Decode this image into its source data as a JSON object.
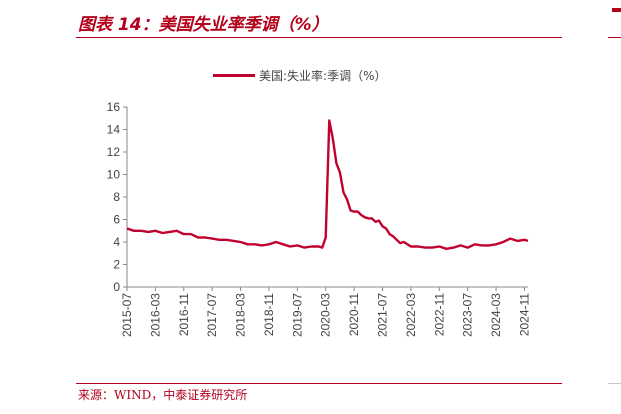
{
  "figure": {
    "title": "图表 14：美国失业率季调（%）",
    "source": "来源：WIND，中泰证券研究所"
  },
  "chart_data": {
    "type": "line",
    "legend_position": "top-center",
    "grid": false,
    "ylim": [
      0,
      16
    ],
    "y_ticks": [
      0,
      2,
      4,
      6,
      8,
      10,
      12,
      14,
      16
    ],
    "x_range": [
      "2015-07",
      "2024-12"
    ],
    "x_ticks": [
      "2015-07",
      "2016-03",
      "2016-11",
      "2017-07",
      "2018-03",
      "2018-11",
      "2019-07",
      "2020-03",
      "2020-11",
      "2021-07",
      "2022-03",
      "2022-11",
      "2023-07",
      "2024-03",
      "2024-11"
    ],
    "series": [
      {
        "name": "美国:失业率:季调（%）",
        "color": "#c0022f",
        "points": [
          [
            "2015-07",
            5.2
          ],
          [
            "2015-09",
            5.0
          ],
          [
            "2015-11",
            5.0
          ],
          [
            "2016-01",
            4.9
          ],
          [
            "2016-03",
            5.0
          ],
          [
            "2016-05",
            4.8
          ],
          [
            "2016-07",
            4.9
          ],
          [
            "2016-09",
            5.0
          ],
          [
            "2016-11",
            4.7
          ],
          [
            "2017-01",
            4.7
          ],
          [
            "2017-03",
            4.4
          ],
          [
            "2017-05",
            4.4
          ],
          [
            "2017-07",
            4.3
          ],
          [
            "2017-09",
            4.2
          ],
          [
            "2017-11",
            4.2
          ],
          [
            "2018-01",
            4.1
          ],
          [
            "2018-03",
            4.0
          ],
          [
            "2018-05",
            3.8
          ],
          [
            "2018-07",
            3.8
          ],
          [
            "2018-09",
            3.7
          ],
          [
            "2018-11",
            3.8
          ],
          [
            "2019-01",
            4.0
          ],
          [
            "2019-03",
            3.8
          ],
          [
            "2019-05",
            3.6
          ],
          [
            "2019-07",
            3.7
          ],
          [
            "2019-09",
            3.5
          ],
          [
            "2019-11",
            3.6
          ],
          [
            "2020-01",
            3.6
          ],
          [
            "2020-02",
            3.5
          ],
          [
            "2020-03",
            4.4
          ],
          [
            "2020-04",
            14.8
          ],
          [
            "2020-05",
            13.2
          ],
          [
            "2020-06",
            11.0
          ],
          [
            "2020-07",
            10.2
          ],
          [
            "2020-08",
            8.4
          ],
          [
            "2020-09",
            7.8
          ],
          [
            "2020-10",
            6.8
          ],
          [
            "2020-11",
            6.7
          ],
          [
            "2020-12",
            6.7
          ],
          [
            "2021-01",
            6.4
          ],
          [
            "2021-02",
            6.2
          ],
          [
            "2021-03",
            6.1
          ],
          [
            "2021-04",
            6.1
          ],
          [
            "2021-05",
            5.8
          ],
          [
            "2021-06",
            5.9
          ],
          [
            "2021-07",
            5.4
          ],
          [
            "2021-08",
            5.2
          ],
          [
            "2021-09",
            4.7
          ],
          [
            "2021-10",
            4.5
          ],
          [
            "2021-11",
            4.2
          ],
          [
            "2021-12",
            3.9
          ],
          [
            "2022-01",
            4.0
          ],
          [
            "2022-03",
            3.6
          ],
          [
            "2022-05",
            3.6
          ],
          [
            "2022-07",
            3.5
          ],
          [
            "2022-09",
            3.5
          ],
          [
            "2022-11",
            3.6
          ],
          [
            "2023-01",
            3.4
          ],
          [
            "2023-03",
            3.5
          ],
          [
            "2023-05",
            3.7
          ],
          [
            "2023-07",
            3.5
          ],
          [
            "2023-09",
            3.8
          ],
          [
            "2023-11",
            3.7
          ],
          [
            "2024-01",
            3.7
          ],
          [
            "2024-03",
            3.8
          ],
          [
            "2024-05",
            4.0
          ],
          [
            "2024-07",
            4.3
          ],
          [
            "2024-09",
            4.1
          ],
          [
            "2024-11",
            4.2
          ],
          [
            "2024-12",
            4.1
          ]
        ]
      }
    ]
  }
}
